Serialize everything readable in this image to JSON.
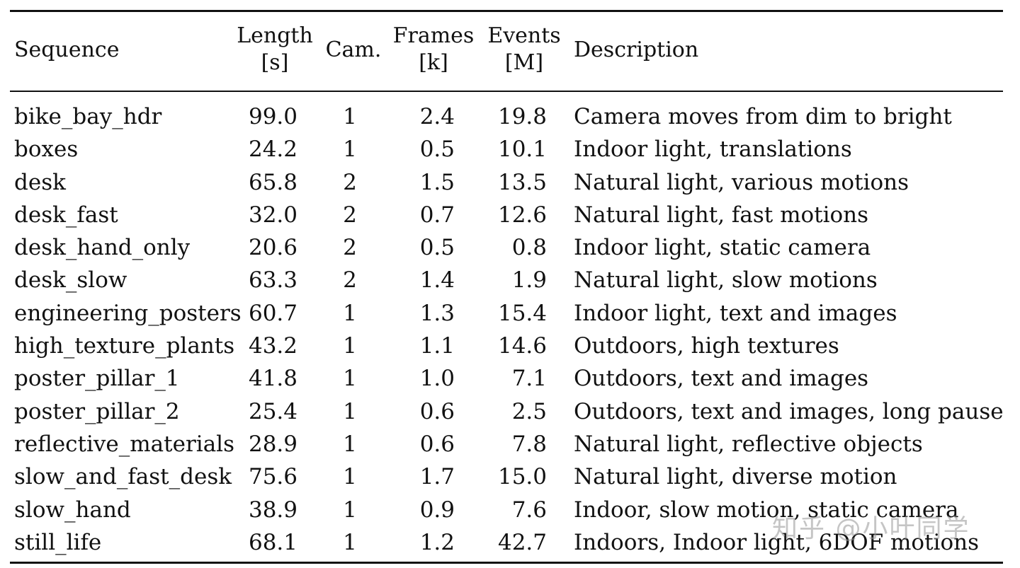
{
  "table": {
    "headers": {
      "sequence": "Sequence",
      "length_1": "Length",
      "length_2": "[s]",
      "cam": "Cam.",
      "frames_1": "Frames",
      "frames_2": "[k]",
      "events_1": "Events",
      "events_2": "[M]",
      "description": "Description"
    },
    "rows": [
      {
        "sequence": "bike_bay_hdr",
        "length": "99.0",
        "cam": "1",
        "frames": "2.4",
        "events": "19.8",
        "description": "Camera moves from dim to bright"
      },
      {
        "sequence": "boxes",
        "length": "24.2",
        "cam": "1",
        "frames": "0.5",
        "events": "10.1",
        "description": "Indoor light, translations"
      },
      {
        "sequence": "desk",
        "length": "65.8",
        "cam": "2",
        "frames": "1.5",
        "events": "13.5",
        "description": "Natural light, various motions"
      },
      {
        "sequence": "desk_fast",
        "length": "32.0",
        "cam": "2",
        "frames": "0.7",
        "events": "12.6",
        "description": "Natural light, fast motions"
      },
      {
        "sequence": "desk_hand_only",
        "length": "20.6",
        "cam": "2",
        "frames": "0.5",
        "events": "0.8",
        "description": "Indoor light, static camera"
      },
      {
        "sequence": "desk_slow",
        "length": "63.3",
        "cam": "2",
        "frames": "1.4",
        "events": "1.9",
        "description": "Natural light, slow motions"
      },
      {
        "sequence": "engineering_posters",
        "length": "60.7",
        "cam": "1",
        "frames": "1.3",
        "events": "15.4",
        "description": "Indoor light, text and images"
      },
      {
        "sequence": "high_texture_plants",
        "length": "43.2",
        "cam": "1",
        "frames": "1.1",
        "events": "14.6",
        "description": "Outdoors, high textures"
      },
      {
        "sequence": "poster_pillar_1",
        "length": "41.8",
        "cam": "1",
        "frames": "1.0",
        "events": "7.1",
        "description": "Outdoors, text and images"
      },
      {
        "sequence": "poster_pillar_2",
        "length": "25.4",
        "cam": "1",
        "frames": "0.6",
        "events": "2.5",
        "description": "Outdoors, text and images, long pause"
      },
      {
        "sequence": "reflective_materials",
        "length": "28.9",
        "cam": "1",
        "frames": "0.6",
        "events": "7.8",
        "description": "Natural light, reflective objects"
      },
      {
        "sequence": "slow_and_fast_desk",
        "length": "75.6",
        "cam": "1",
        "frames": "1.7",
        "events": "15.0",
        "description": "Natural light, diverse motion"
      },
      {
        "sequence": "slow_hand",
        "length": "38.9",
        "cam": "1",
        "frames": "0.9",
        "events": "7.6",
        "description": "Indoor, slow motion, static camera"
      },
      {
        "sequence": "still_life",
        "length": "68.1",
        "cam": "1",
        "frames": "1.2",
        "events": "42.7",
        "description": "Indoors, Indoor light, 6DOF motions"
      }
    ]
  },
  "watermark": "知乎 @小叶同学"
}
